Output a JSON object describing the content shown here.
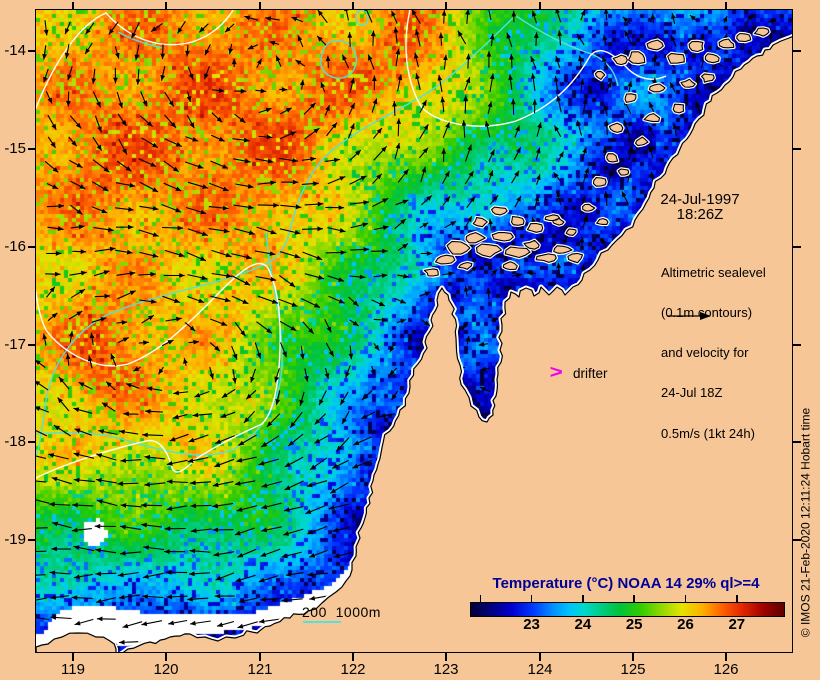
{
  "map": {
    "date_line1": "24-Jul-1997",
    "date_line2": "18:26Z",
    "info_lines": [
      "Altimetric sealevel",
      "(0.1m contours)",
      "and velocity for",
      "24-Jul 18Z",
      "0.5m/s (1kt 24h)"
    ],
    "drifter_marker": ">",
    "drifter_label": "drifter",
    "depth_scale_label": "200  1000m",
    "copyright": "© IMOS 21-Feb-2020 12:11:24 Hobart time"
  },
  "axes": {
    "lon_labels": [
      "119",
      "120",
      "121",
      "122",
      "123",
      "124",
      "125",
      "126"
    ],
    "lat_labels": [
      "-14",
      "-15",
      "-16",
      "-17",
      "-18",
      "-19"
    ]
  },
  "colorbar": {
    "title": "Temperature (°C) NOAA 14 29% ql>=4",
    "tick_values": [
      22,
      23,
      24,
      25,
      26,
      27
    ],
    "tick_labels": [
      "23",
      "24",
      "25",
      "26",
      "27"
    ],
    "range": [
      21.8,
      27.9
    ]
  },
  "colors": {
    "land": "#f6c696",
    "coastline": "#000000",
    "no_data_white": "#ffffff",
    "bathymetry_contour": "#55e0d8",
    "sealevel_contour": "#ffffff",
    "velocity_arrow": "#000000",
    "drifter": "#ee00ee",
    "colorbar_title": "#000099",
    "palette": [
      [
        21.8,
        "#000038"
      ],
      [
        22.2,
        "#000080"
      ],
      [
        22.6,
        "#0000d0"
      ],
      [
        23.0,
        "#0038ff"
      ],
      [
        23.4,
        "#0090ff"
      ],
      [
        23.7,
        "#00c0ff"
      ],
      [
        24.0,
        "#00d8cc"
      ],
      [
        24.35,
        "#00cc80"
      ],
      [
        24.7,
        "#00c23a"
      ],
      [
        25.1,
        "#30cc00"
      ],
      [
        25.5,
        "#90d800"
      ],
      [
        25.9,
        "#e4e400"
      ],
      [
        26.3,
        "#ffb000"
      ],
      [
        26.7,
        "#ff6000"
      ],
      [
        27.1,
        "#e02500"
      ],
      [
        27.5,
        "#a00000"
      ],
      [
        27.9,
        "#5e0000"
      ]
    ]
  }
}
